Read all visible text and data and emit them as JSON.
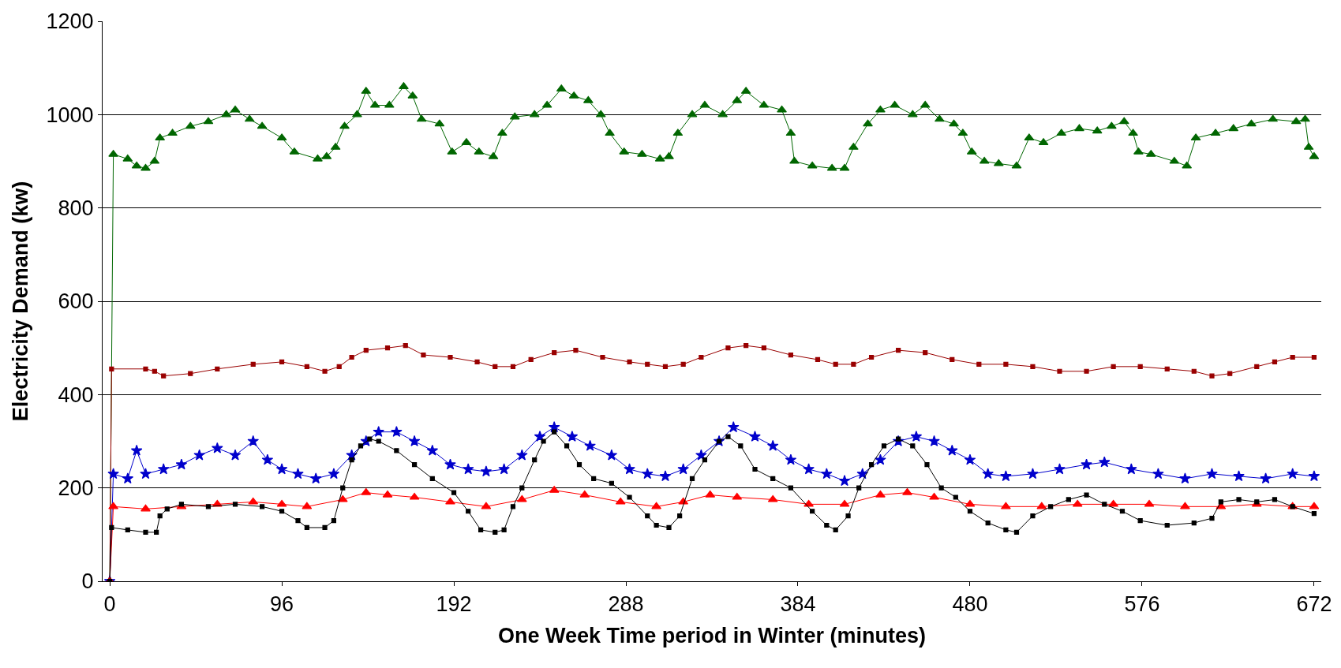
{
  "chart_data": {
    "type": "line",
    "xlabel": "One Week Time period in Winter (minutes)",
    "ylabel": "Electricity Demand (kw)",
    "xlim": [
      -4,
      676
    ],
    "xticks": [
      0,
      96,
      192,
      288,
      384,
      480,
      576,
      672
    ],
    "ylim": [
      0,
      1200
    ],
    "yticks": [
      0,
      200,
      400,
      600,
      800,
      1000,
      1200
    ],
    "grid": "y",
    "line_style": "solid",
    "series": [
      {
        "color": "#006600",
        "marker": "triangle",
        "x": [
          0,
          2,
          10,
          15,
          20,
          25,
          28,
          35,
          45,
          55,
          65,
          70,
          78,
          85,
          96,
          103,
          116,
          121,
          126,
          131,
          138,
          143,
          148,
          156,
          164,
          169,
          174,
          184,
          191,
          199,
          206,
          214,
          219,
          226,
          237,
          244,
          252,
          259,
          267,
          274,
          279,
          287,
          297,
          307,
          312,
          317,
          325,
          332,
          342,
          350,
          355,
          365,
          375,
          380,
          382,
          392,
          403,
          410,
          415,
          423,
          430,
          438,
          448,
          455,
          463,
          471,
          476,
          481,
          488,
          496,
          506,
          513,
          521,
          531,
          541,
          551,
          559,
          566,
          571,
          574,
          581,
          594,
          601,
          606,
          617,
          627,
          637,
          649,
          662,
          667,
          669,
          672
        ],
        "values": [
          0,
          915,
          905,
          890,
          885,
          900,
          950,
          960,
          975,
          985,
          1000,
          1010,
          990,
          975,
          950,
          920,
          905,
          910,
          930,
          975,
          1000,
          1050,
          1020,
          1020,
          1060,
          1040,
          990,
          980,
          920,
          940,
          920,
          910,
          960,
          995,
          1000,
          1020,
          1055,
          1040,
          1030,
          1000,
          960,
          920,
          915,
          905,
          910,
          960,
          1000,
          1020,
          1000,
          1030,
          1050,
          1020,
          1010,
          960,
          900,
          890,
          885,
          885,
          930,
          980,
          1010,
          1020,
          1000,
          1020,
          990,
          980,
          960,
          920,
          900,
          895,
          890,
          950,
          940,
          960,
          970,
          965,
          975,
          985,
          960,
          920,
          915,
          900,
          890,
          950,
          960,
          970,
          980,
          990,
          985,
          990,
          930,
          910
        ]
      },
      {
        "color": "#990000",
        "marker": "square",
        "x": [
          0,
          1,
          20,
          25,
          30,
          45,
          60,
          80,
          96,
          110,
          120,
          128,
          135,
          143,
          155,
          165,
          175,
          190,
          205,
          215,
          225,
          235,
          248,
          260,
          275,
          290,
          300,
          310,
          320,
          330,
          345,
          355,
          365,
          380,
          395,
          405,
          415,
          425,
          440,
          455,
          470,
          485,
          500,
          515,
          530,
          545,
          560,
          575,
          590,
          605,
          615,
          625,
          640,
          650,
          660,
          672
        ],
        "values": [
          0,
          455,
          455,
          450,
          440,
          445,
          455,
          465,
          470,
          460,
          450,
          460,
          480,
          495,
          500,
          505,
          485,
          480,
          470,
          460,
          460,
          475,
          490,
          495,
          480,
          470,
          465,
          460,
          465,
          480,
          500,
          505,
          500,
          485,
          475,
          465,
          465,
          480,
          495,
          490,
          475,
          465,
          465,
          460,
          450,
          450,
          460,
          460,
          455,
          450,
          440,
          445,
          460,
          470,
          480,
          480
        ]
      },
      {
        "color": "#0000cc",
        "marker": "star",
        "x": [
          0,
          2,
          10,
          15,
          20,
          30,
          40,
          50,
          60,
          70,
          80,
          88,
          96,
          105,
          115,
          125,
          135,
          143,
          150,
          160,
          170,
          180,
          190,
          200,
          210,
          220,
          230,
          240,
          248,
          258,
          268,
          280,
          290,
          300,
          310,
          320,
          330,
          340,
          348,
          360,
          370,
          380,
          390,
          400,
          410,
          420,
          430,
          440,
          450,
          460,
          470,
          480,
          490,
          500,
          515,
          530,
          545,
          555,
          570,
          585,
          600,
          615,
          630,
          645,
          660,
          672
        ],
        "values": [
          0,
          230,
          220,
          280,
          230,
          240,
          250,
          270,
          285,
          270,
          300,
          260,
          240,
          230,
          220,
          230,
          270,
          300,
          320,
          320,
          300,
          280,
          250,
          240,
          235,
          240,
          270,
          310,
          330,
          310,
          290,
          270,
          240,
          230,
          225,
          240,
          270,
          300,
          330,
          310,
          290,
          260,
          240,
          230,
          215,
          230,
          260,
          300,
          310,
          300,
          280,
          260,
          230,
          225,
          230,
          240,
          250,
          255,
          240,
          230,
          220,
          230,
          225,
          220,
          230,
          225
        ]
      },
      {
        "color": "#ff0000",
        "marker": "triangle",
        "x": [
          0,
          2,
          20,
          40,
          60,
          80,
          96,
          110,
          130,
          143,
          155,
          170,
          190,
          210,
          230,
          248,
          265,
          285,
          305,
          320,
          335,
          350,
          370,
          390,
          410,
          430,
          445,
          460,
          480,
          500,
          520,
          540,
          560,
          580,
          600,
          620,
          640,
          660,
          672
        ],
        "values": [
          0,
          160,
          155,
          160,
          165,
          170,
          165,
          160,
          175,
          190,
          185,
          180,
          170,
          160,
          175,
          195,
          185,
          170,
          160,
          170,
          185,
          180,
          175,
          165,
          165,
          185,
          190,
          180,
          165,
          160,
          160,
          165,
          165,
          165,
          160,
          160,
          165,
          160,
          160
        ]
      },
      {
        "color": "#000000",
        "marker": "square",
        "x": [
          0,
          1,
          10,
          20,
          26,
          28,
          32,
          40,
          55,
          70,
          85,
          96,
          105,
          110,
          120,
          125,
          130,
          135,
          140,
          145,
          150,
          160,
          170,
          180,
          192,
          200,
          207,
          215,
          220,
          225,
          230,
          237,
          242,
          248,
          255,
          262,
          270,
          280,
          290,
          300,
          305,
          312,
          318,
          325,
          332,
          340,
          345,
          352,
          360,
          370,
          380,
          392,
          400,
          405,
          412,
          418,
          425,
          432,
          440,
          448,
          456,
          464,
          472,
          480,
          490,
          500,
          506,
          515,
          525,
          535,
          545,
          555,
          565,
          575,
          590,
          605,
          615,
          620,
          630,
          640,
          650,
          660,
          672
        ],
        "values": [
          0,
          115,
          110,
          105,
          105,
          140,
          155,
          165,
          160,
          165,
          160,
          150,
          130,
          115,
          115,
          130,
          200,
          260,
          290,
          305,
          300,
          280,
          250,
          220,
          190,
          150,
          110,
          105,
          110,
          160,
          200,
          260,
          300,
          320,
          290,
          250,
          220,
          210,
          180,
          140,
          120,
          115,
          140,
          220,
          260,
          300,
          310,
          290,
          240,
          220,
          200,
          150,
          120,
          110,
          140,
          200,
          250,
          290,
          305,
          290,
          250,
          200,
          180,
          150,
          125,
          110,
          105,
          140,
          160,
          175,
          185,
          165,
          150,
          130,
          120,
          125,
          135,
          170,
          175,
          170,
          175,
          160,
          145
        ]
      }
    ]
  }
}
